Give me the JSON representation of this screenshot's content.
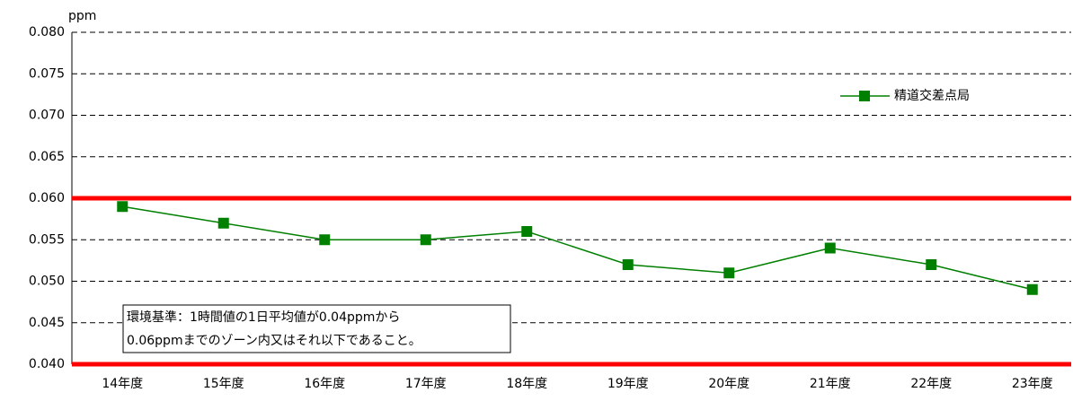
{
  "chart_data": {
    "type": "line",
    "y_unit": "ppm",
    "categories": [
      "14年度",
      "15年度",
      "16年度",
      "17年度",
      "18年度",
      "19年度",
      "20年度",
      "21年度",
      "22年度",
      "23年度"
    ],
    "series": [
      {
        "name": "精道交差点局",
        "color": "#008000",
        "values": [
          0.059,
          0.057,
          0.055,
          0.055,
          0.056,
          0.052,
          0.051,
          0.054,
          0.052,
          0.049
        ]
      }
    ],
    "ylim": [
      0.04,
      0.08
    ],
    "yticks": [
      {
        "value": 0.04,
        "label": "0.040"
      },
      0.045,
      {
        "value": 0.05,
        "label": "0.050"
      },
      0.055,
      {
        "value": 0.06,
        "label": "0.060"
      },
      0.065,
      {
        "value": 0.07,
        "label": "0.070"
      },
      0.075,
      {
        "value": 0.08,
        "label": "0.080"
      }
    ],
    "grid": true,
    "legend": "upper right",
    "reference_lines": [
      0.04,
      0.06
    ],
    "reference_color": "#ff0000",
    "annotation": [
      "環境基準：1時間値の1日平均値が0.04ppmから",
      "0.06ppmまでのゾーン内又はそれ以下であること。"
    ]
  }
}
